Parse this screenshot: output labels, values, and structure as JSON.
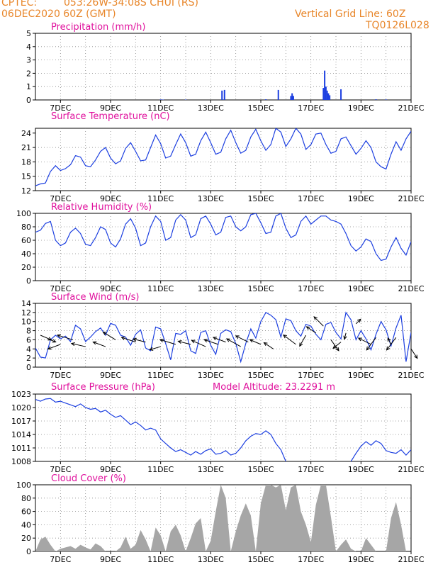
{
  "header": {
    "source": "CPTEC:",
    "location": "053:26W-34:08S   CHUI (RS)",
    "run": "06DEC2020 60Z (GMT)",
    "grid_note": "Vertical Grid Line: 60Z",
    "code": "TQ0126L028"
  },
  "x_ticks": [
    "7DEC",
    "9DEC",
    "11DEC",
    "13DEC",
    "15DEC",
    "17DEC",
    "19DEC",
    "21DEC"
  ],
  "colors": {
    "line": "#1c3fe0",
    "title": "#e0119d",
    "header": "#e8862a",
    "cloud": "#a6a6a6",
    "arrow": "#000000"
  },
  "chart_data": [
    {
      "type": "bar",
      "title": "Precipitation (mm/h)",
      "ylim": [
        0,
        5
      ],
      "yticks": [
        "0",
        "1",
        "2",
        "3",
        "4",
        "5"
      ],
      "x": [
        11.0,
        11.1,
        12.0,
        13.45,
        13.55,
        15.2,
        15.7,
        16.2,
        16.25,
        16.3,
        17.5,
        17.55,
        17.6,
        17.65,
        17.7,
        17.75,
        18.2,
        19.6,
        20.0
      ],
      "values": [
        0.04,
        0.03,
        0.03,
        0.7,
        0.75,
        0.05,
        0.75,
        0.3,
        0.5,
        0.3,
        0.9,
        2.2,
        1.0,
        0.7,
        0.5,
        0.35,
        0.8,
        0.05,
        0.04
      ]
    },
    {
      "type": "line",
      "title": "Surface Temperature (nC)",
      "ylim": [
        12,
        25
      ],
      "yticks": [
        "12",
        "15",
        "18",
        "21",
        "24"
      ],
      "x": [
        6.0,
        6.2,
        6.4,
        6.6,
        6.8,
        7.0,
        7.2,
        7.4,
        7.6,
        7.8,
        8.0,
        8.2,
        8.4,
        8.6,
        8.8,
        9.0,
        9.2,
        9.4,
        9.6,
        9.8,
        10.0,
        10.2,
        10.4,
        10.6,
        10.8,
        11.0,
        11.2,
        11.4,
        11.6,
        11.8,
        12.0,
        12.2,
        12.4,
        12.6,
        12.8,
        13.0,
        13.2,
        13.4,
        13.6,
        13.8,
        14.0,
        14.2,
        14.4,
        14.6,
        14.8,
        15.0,
        15.2,
        15.4,
        15.6,
        15.8,
        16.0,
        16.2,
        16.4,
        16.6,
        16.8,
        17.0,
        17.2,
        17.4,
        17.6,
        17.8,
        18.0,
        18.2,
        18.4,
        18.6,
        18.8,
        19.0,
        19.2,
        19.4,
        19.6,
        19.8,
        20.0,
        20.2,
        20.4,
        20.6,
        20.8,
        21.0
      ],
      "values": [
        13.0,
        13.4,
        13.6,
        16.0,
        17.2,
        16.2,
        16.6,
        17.4,
        19.3,
        19.0,
        17.2,
        17.0,
        18.4,
        20.2,
        21.0,
        18.8,
        17.6,
        18.2,
        20.8,
        22.0,
        20.2,
        18.2,
        18.4,
        21.0,
        23.6,
        21.8,
        18.8,
        19.2,
        21.6,
        23.8,
        22.0,
        19.2,
        19.6,
        22.4,
        24.2,
        22.0,
        19.6,
        20.0,
        22.8,
        24.6,
        22.0,
        19.8,
        20.4,
        23.2,
        24.8,
        22.4,
        20.4,
        21.6,
        25.0,
        24.2,
        21.2,
        22.8,
        25.0,
        23.8,
        20.6,
        21.6,
        23.8,
        24.0,
        21.6,
        19.8,
        20.2,
        22.8,
        23.2,
        21.4,
        19.6,
        20.8,
        22.4,
        21.0,
        18.0,
        17.0,
        16.5,
        19.6,
        22.2,
        20.4,
        22.8,
        24.4
      ]
    },
    {
      "type": "line",
      "title": "Relative Humidity (%)",
      "ylim": [
        0,
        100
      ],
      "yticks": [
        "0",
        "20",
        "40",
        "60",
        "80",
        "100"
      ],
      "x": [
        6.0,
        6.2,
        6.4,
        6.6,
        6.8,
        7.0,
        7.2,
        7.4,
        7.6,
        7.8,
        8.0,
        8.2,
        8.4,
        8.6,
        8.8,
        9.0,
        9.2,
        9.4,
        9.6,
        9.8,
        10.0,
        10.2,
        10.4,
        10.6,
        10.8,
        11.0,
        11.2,
        11.4,
        11.6,
        11.8,
        12.0,
        12.2,
        12.4,
        12.6,
        12.8,
        13.0,
        13.2,
        13.4,
        13.6,
        13.8,
        14.0,
        14.2,
        14.4,
        14.6,
        14.8,
        15.0,
        15.2,
        15.4,
        15.6,
        15.8,
        16.0,
        16.2,
        16.4,
        16.6,
        16.8,
        17.0,
        17.2,
        17.4,
        17.6,
        17.8,
        18.0,
        18.2,
        18.4,
        18.6,
        18.8,
        19.0,
        19.2,
        19.4,
        19.6,
        19.8,
        20.0,
        20.2,
        20.4,
        20.6,
        20.8,
        21.0
      ],
      "values": [
        72,
        75,
        85,
        88,
        60,
        52,
        56,
        72,
        78,
        70,
        54,
        52,
        64,
        80,
        76,
        56,
        50,
        62,
        84,
        92,
        78,
        52,
        56,
        80,
        96,
        88,
        60,
        64,
        90,
        98,
        90,
        64,
        68,
        92,
        96,
        84,
        68,
        72,
        94,
        96,
        80,
        74,
        80,
        98,
        100,
        86,
        70,
        72,
        96,
        100,
        78,
        64,
        68,
        88,
        96,
        84,
        90,
        96,
        96,
        90,
        88,
        84,
        70,
        52,
        44,
        50,
        62,
        58,
        40,
        30,
        32,
        50,
        64,
        48,
        38,
        58
      ]
    },
    {
      "type": "line",
      "title": "Surface Wind (m/s)",
      "ylim": [
        0,
        14
      ],
      "yticks": [
        "0",
        "2",
        "4",
        "6",
        "8",
        "10",
        "12",
        "14"
      ],
      "x": [
        6.0,
        6.2,
        6.4,
        6.6,
        6.8,
        7.0,
        7.2,
        7.4,
        7.6,
        7.8,
        8.0,
        8.2,
        8.4,
        8.6,
        8.8,
        9.0,
        9.2,
        9.4,
        9.6,
        9.8,
        10.0,
        10.2,
        10.4,
        10.6,
        10.8,
        11.0,
        11.2,
        11.4,
        11.6,
        11.8,
        12.0,
        12.2,
        12.4,
        12.6,
        12.8,
        13.0,
        13.2,
        13.4,
        13.6,
        13.8,
        14.0,
        14.2,
        14.4,
        14.6,
        14.8,
        15.0,
        15.2,
        15.4,
        15.6,
        15.8,
        16.0,
        16.2,
        16.4,
        16.6,
        16.8,
        17.0,
        17.2,
        17.4,
        17.6,
        17.8,
        18.0,
        18.2,
        18.4,
        18.6,
        18.8,
        19.0,
        19.2,
        19.4,
        19.6,
        19.8,
        20.0,
        20.2,
        20.4,
        20.6,
        20.8,
        21.0
      ],
      "values": [
        4.2,
        2.2,
        2.0,
        6.0,
        7.0,
        6.2,
        6.8,
        5.6,
        9.2,
        8.4,
        5.6,
        6.6,
        7.8,
        8.6,
        7.0,
        9.6,
        9.2,
        7.0,
        6.6,
        4.8,
        7.2,
        8.2,
        4.2,
        3.6,
        8.8,
        8.4,
        5.2,
        1.6,
        7.4,
        7.2,
        8.0,
        3.6,
        3.0,
        7.6,
        8.0,
        4.8,
        2.8,
        7.4,
        8.2,
        7.8,
        5.2,
        1.2,
        5.2,
        8.4,
        6.4,
        10.0,
        12.0,
        11.4,
        10.4,
        6.6,
        10.6,
        10.2,
        8.0,
        6.8,
        9.4,
        9.0,
        7.2,
        6.0,
        9.4,
        9.8,
        7.6,
        6.2,
        12.0,
        10.4,
        6.0,
        8.0,
        6.2,
        3.8,
        7.2,
        10.0,
        8.2,
        4.6,
        8.6,
        11.4,
        1.2,
        7.6
      ]
    },
    {
      "type": "line",
      "title": "Surface Pressure (hPa)",
      "subtitle": "Model Altitude: 23.2291  m",
      "ylim": [
        1008,
        1023
      ],
      "yticks": [
        "1008",
        "1011",
        "1014",
        "1017",
        "1020",
        "1023"
      ],
      "x": [
        6.0,
        6.2,
        6.4,
        6.6,
        6.8,
        7.0,
        7.2,
        7.4,
        7.6,
        7.8,
        8.0,
        8.2,
        8.4,
        8.6,
        8.8,
        9.0,
        9.2,
        9.4,
        9.6,
        9.8,
        10.0,
        10.2,
        10.4,
        10.6,
        10.8,
        11.0,
        11.2,
        11.4,
        11.6,
        11.8,
        12.0,
        12.2,
        12.4,
        12.6,
        12.8,
        13.0,
        13.2,
        13.4,
        13.6,
        13.8,
        14.0,
        14.2,
        14.4,
        14.6,
        14.8,
        15.0,
        15.2,
        15.4,
        15.6,
        15.8,
        16.0,
        18.6,
        18.8,
        19.0,
        19.2,
        19.4,
        19.6,
        19.8,
        20.0,
        20.2,
        20.4,
        20.6,
        20.8,
        21.0
      ],
      "values": [
        1021.8,
        1021.4,
        1021.9,
        1022.0,
        1021.2,
        1021.4,
        1021.0,
        1020.6,
        1020.2,
        1020.8,
        1020.0,
        1019.6,
        1019.8,
        1019.0,
        1019.4,
        1018.5,
        1017.8,
        1018.2,
        1017.2,
        1016.2,
        1016.8,
        1016.0,
        1015.0,
        1015.4,
        1015.0,
        1013.0,
        1012.0,
        1011.0,
        1010.2,
        1010.6,
        1010.0,
        1009.4,
        1010.2,
        1009.6,
        1010.4,
        1010.8,
        1009.6,
        1009.8,
        1010.4,
        1009.4,
        1009.8,
        1011.0,
        1012.6,
        1013.6,
        1014.2,
        1014.0,
        1014.8,
        1014.0,
        1012.0,
        1010.6,
        1008.0,
        1008.0,
        1009.8,
        1011.4,
        1012.4,
        1011.6,
        1012.6,
        1012.0,
        1010.4,
        1010.0,
        1009.8,
        1010.6,
        1009.4,
        1010.6
      ]
    },
    {
      "type": "area",
      "title": "Cloud Cover (%)",
      "ylim": [
        0,
        100
      ],
      "yticks": [
        "0",
        "20",
        "40",
        "60",
        "80",
        "100"
      ],
      "x": [
        6.0,
        6.2,
        6.4,
        6.6,
        6.8,
        7.0,
        7.2,
        7.4,
        7.6,
        7.8,
        8.0,
        8.2,
        8.4,
        8.6,
        8.8,
        9.0,
        9.2,
        9.4,
        9.6,
        9.8,
        10.0,
        10.2,
        10.4,
        10.6,
        10.8,
        11.0,
        11.2,
        11.4,
        11.6,
        11.8,
        12.0,
        12.2,
        12.4,
        12.6,
        12.8,
        13.0,
        13.2,
        13.4,
        13.6,
        13.8,
        14.0,
        14.2,
        14.4,
        14.6,
        14.8,
        15.0,
        15.2,
        15.4,
        15.6,
        15.8,
        16.0,
        16.2,
        16.4,
        16.6,
        16.8,
        17.0,
        17.2,
        17.4,
        17.6,
        17.8,
        18.0,
        18.2,
        18.4,
        18.6,
        18.8,
        19.0,
        19.2,
        19.4,
        19.6,
        19.8,
        20.0,
        20.2,
        20.4,
        20.6,
        20.8,
        21.0
      ],
      "values": [
        0,
        18,
        22,
        10,
        0,
        4,
        6,
        8,
        4,
        10,
        6,
        3,
        12,
        8,
        0,
        0,
        0,
        6,
        22,
        4,
        10,
        32,
        18,
        0,
        36,
        24,
        0,
        30,
        40,
        24,
        0,
        20,
        42,
        50,
        0,
        16,
        60,
        100,
        80,
        0,
        30,
        54,
        72,
        54,
        0,
        72,
        100,
        100,
        96,
        100,
        62,
        96,
        100,
        60,
        40,
        14,
        70,
        100,
        100,
        52,
        0,
        10,
        18,
        4,
        0,
        0,
        20,
        10,
        0,
        0,
        0,
        50,
        74,
        40,
        0,
        0
      ]
    }
  ],
  "wind_arrows": {
    "x": [
      6.2,
      6.5,
      7.0,
      7.5,
      8.0,
      8.8,
      9.2,
      10.0,
      10.4,
      11.0,
      11.6,
      12.2,
      12.8,
      13.3,
      13.6,
      14.2,
      14.5,
      15.0,
      15.5,
      16.4,
      16.8,
      17.2,
      17.5,
      17.8,
      18.2,
      18.4,
      18.8,
      19.4,
      19.6,
      20.2,
      20.4,
      21.0
    ],
    "y": [
      7.0,
      6.2,
      5.0,
      6.0,
      4.5,
      4.5,
      6.0,
      5.5,
      5.5,
      4.5,
      5.0,
      5.0,
      4.5,
      5.0,
      5.5,
      4.5,
      5.5,
      5.0,
      4.0,
      5.0,
      7.0,
      7.5,
      9.0,
      6.0,
      5.5,
      7.5,
      9.5,
      5.0,
      6.5,
      5.0,
      6.5,
      4.0
    ],
    "u": [
      7,
      5,
      -8,
      -10,
      -9,
      -8,
      -8,
      -9,
      -8,
      -7,
      -10,
      -8,
      -9,
      -9,
      -8,
      -9,
      -8,
      -7,
      -6,
      -8,
      -4,
      -6,
      -6,
      5,
      -5,
      -1,
      3,
      -8,
      -6,
      -2,
      -6,
      4
    ],
    "v": [
      -3,
      -2,
      -3,
      3,
      2,
      3,
      5,
      3,
      2,
      -2,
      3,
      2,
      4,
      3,
      3,
      5,
      4,
      3,
      4,
      6,
      -7,
      4,
      6,
      -7,
      -4,
      -4,
      3,
      4,
      -8,
      4,
      -8,
      -6
    ]
  }
}
